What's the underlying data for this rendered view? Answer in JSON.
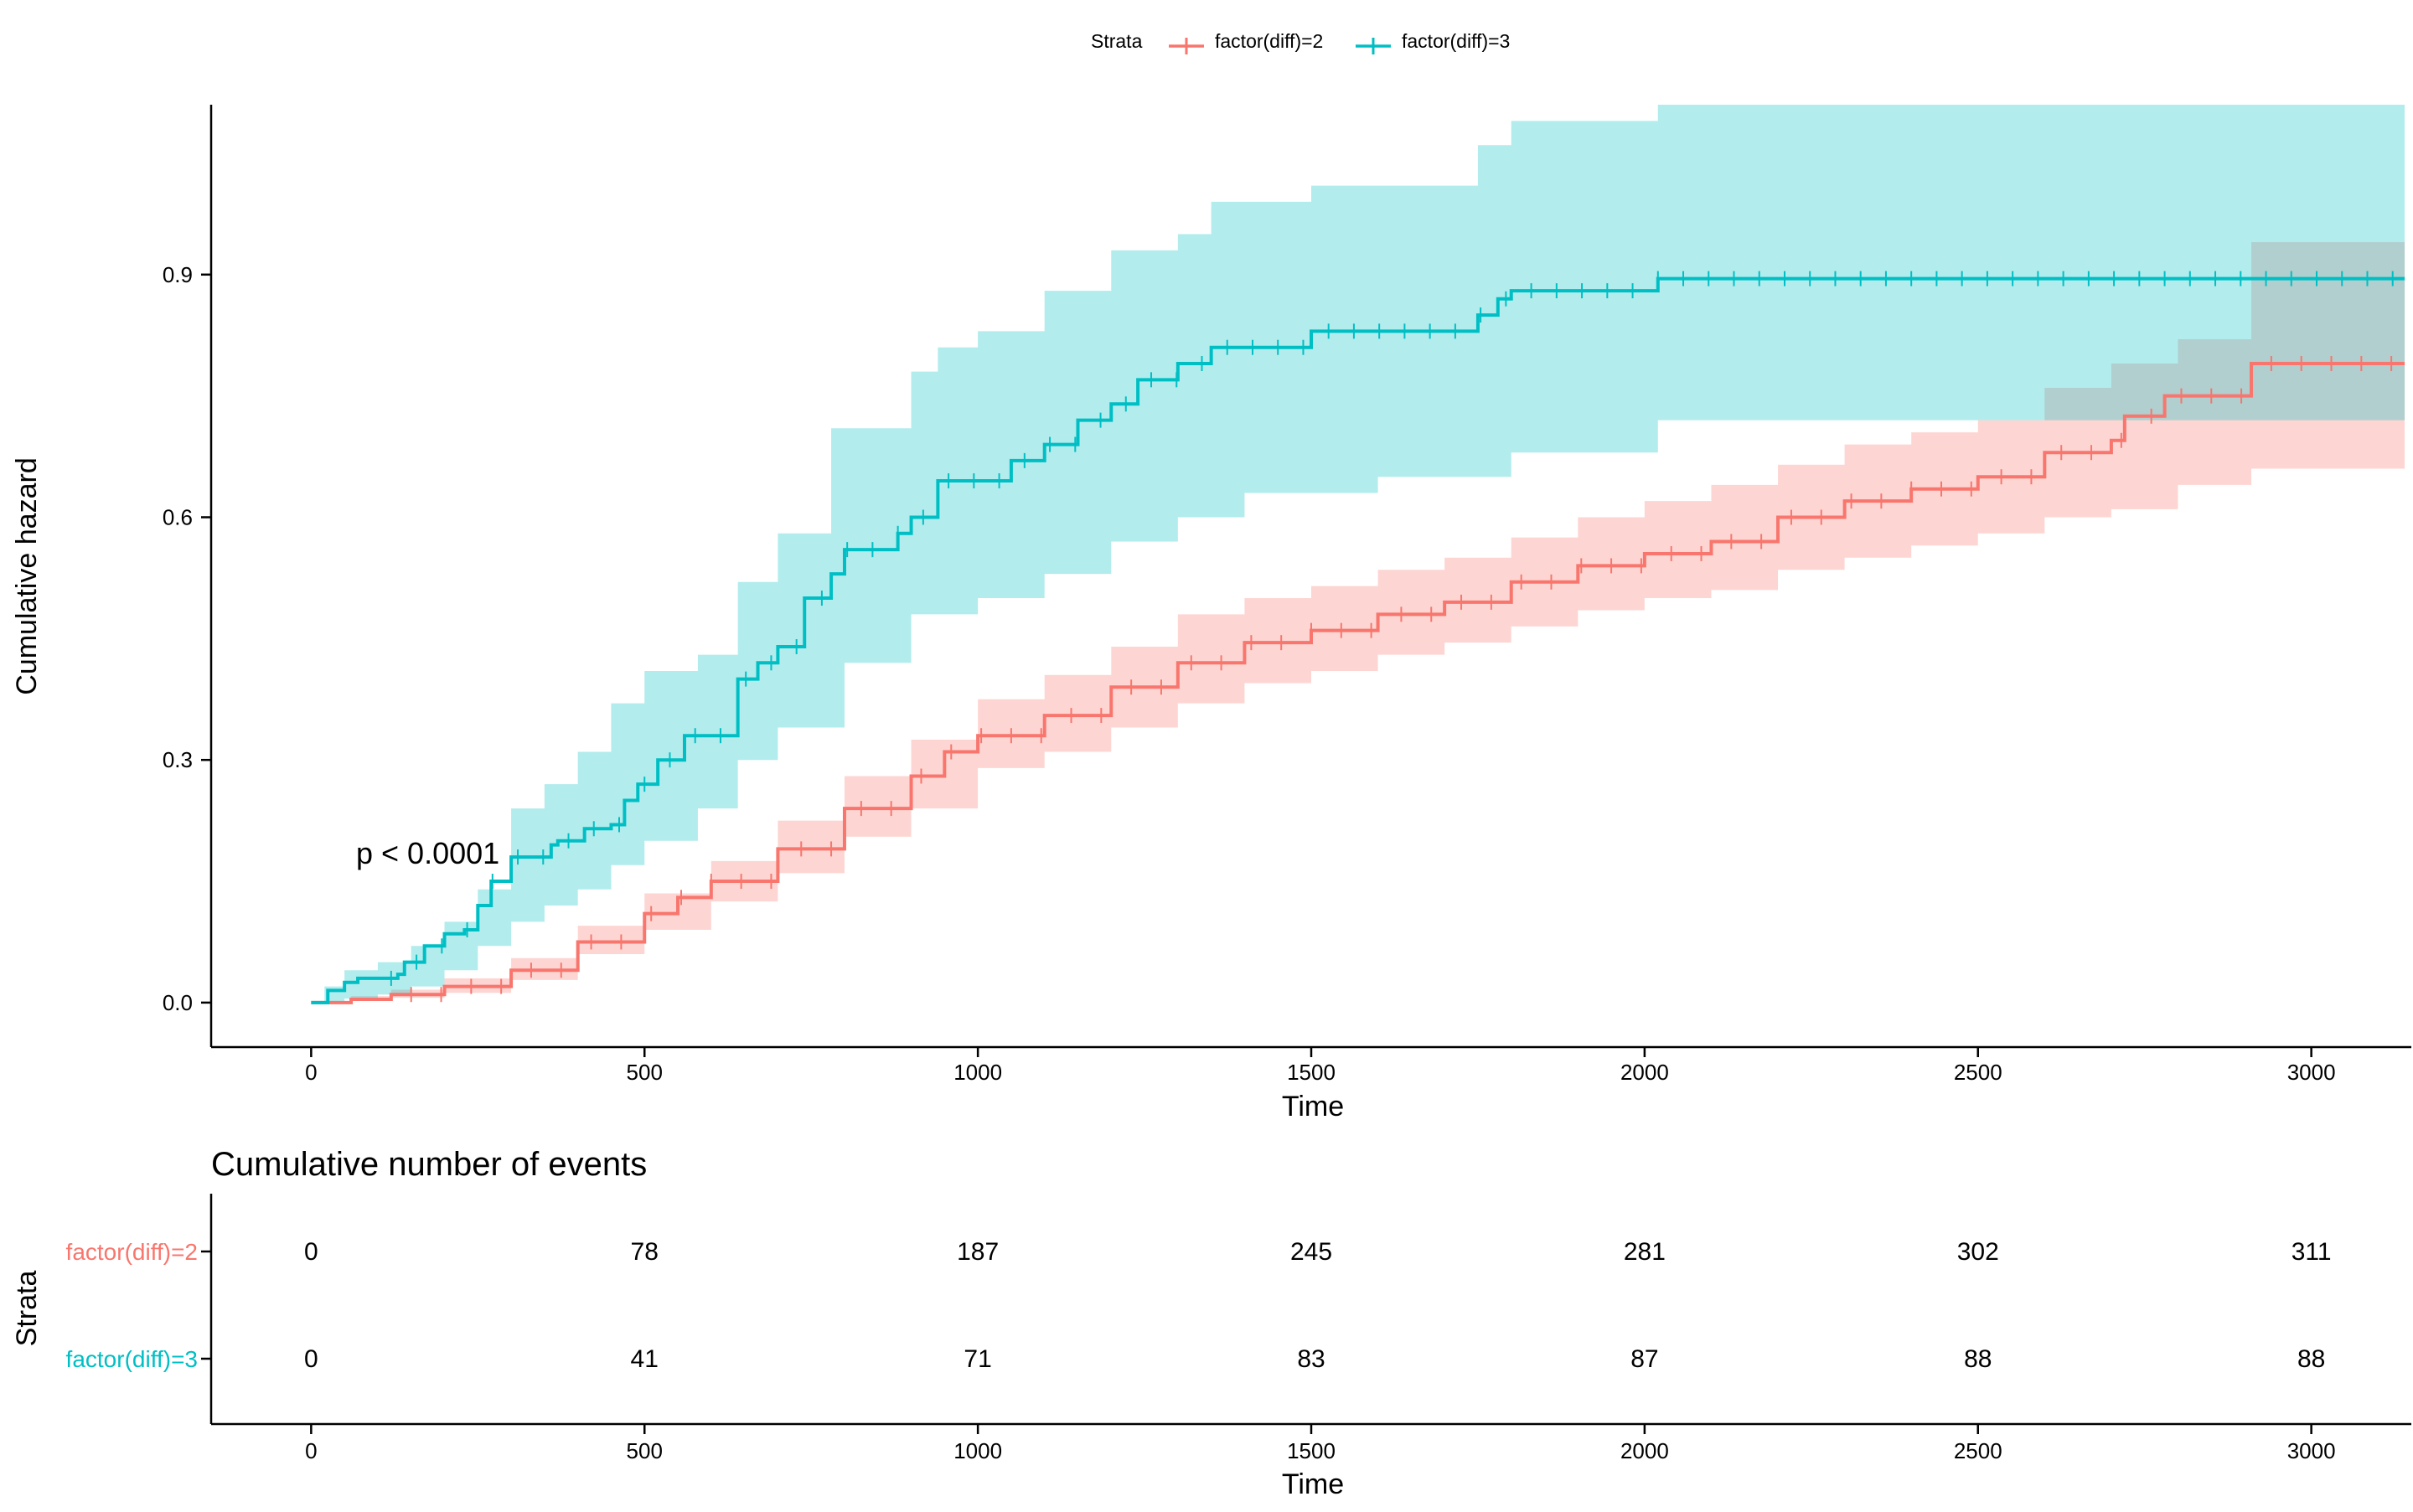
{
  "legend": {
    "title": "Strata",
    "items": [
      {
        "label": "factor(diff)=2",
        "color": "#F8766D"
      },
      {
        "label": "factor(diff)=3",
        "color": "#00BFC4"
      }
    ]
  },
  "chart_data": [
    {
      "type": "line",
      "title": "",
      "xlabel": "Time",
      "ylabel": "Cumulative hazard",
      "xlim": [
        -150,
        3150
      ],
      "ylim": [
        -0.055,
        1.11
      ],
      "xticks": [
        0,
        500,
        1000,
        1500,
        2000,
        2500,
        3000
      ],
      "yticks": [
        0.0,
        0.3,
        0.6,
        0.9
      ],
      "ytick_labels": [
        "0.0",
        "0.3",
        "0.6",
        "0.9"
      ],
      "grid": false,
      "legend_position": "top",
      "annotation": "p < 0.0001",
      "series": [
        {
          "name": "factor(diff)=2",
          "color": "#F8766D",
          "points": [
            [
              0,
              0
            ],
            [
              60,
              0.004
            ],
            [
              120,
              0.01
            ],
            [
              200,
              0.02
            ],
            [
              300,
              0.04
            ],
            [
              400,
              0.075
            ],
            [
              500,
              0.11
            ],
            [
              550,
              0.13
            ],
            [
              600,
              0.15
            ],
            [
              700,
              0.19
            ],
            [
              800,
              0.24
            ],
            [
              900,
              0.28
            ],
            [
              950,
              0.31
            ],
            [
              1000,
              0.33
            ],
            [
              1100,
              0.355
            ],
            [
              1200,
              0.39
            ],
            [
              1300,
              0.42
            ],
            [
              1400,
              0.445
            ],
            [
              1500,
              0.46
            ],
            [
              1600,
              0.48
            ],
            [
              1700,
              0.495
            ],
            [
              1800,
              0.52
            ],
            [
              1900,
              0.54
            ],
            [
              2000,
              0.555
            ],
            [
              2100,
              0.57
            ],
            [
              2200,
              0.6
            ],
            [
              2300,
              0.62
            ],
            [
              2400,
              0.635
            ],
            [
              2500,
              0.65
            ],
            [
              2600,
              0.68
            ],
            [
              2700,
              0.695
            ],
            [
              2720,
              0.725
            ],
            [
              2780,
              0.75
            ],
            [
              2910,
              0.79
            ],
            [
              3140,
              0.79
            ]
          ],
          "ci_lower": [
            [
              0,
              0
            ],
            [
              60,
              0.002
            ],
            [
              120,
              0.006
            ],
            [
              200,
              0.012
            ],
            [
              300,
              0.028
            ],
            [
              400,
              0.06
            ],
            [
              500,
              0.09
            ],
            [
              600,
              0.125
            ],
            [
              700,
              0.16
            ],
            [
              800,
              0.205
            ],
            [
              900,
              0.24
            ],
            [
              1000,
              0.29
            ],
            [
              1100,
              0.31
            ],
            [
              1200,
              0.34
            ],
            [
              1300,
              0.37
            ],
            [
              1400,
              0.395
            ],
            [
              1500,
              0.41
            ],
            [
              1600,
              0.43
            ],
            [
              1700,
              0.445
            ],
            [
              1800,
              0.465
            ],
            [
              1900,
              0.485
            ],
            [
              2000,
              0.5
            ],
            [
              2100,
              0.51
            ],
            [
              2200,
              0.535
            ],
            [
              2300,
              0.55
            ],
            [
              2400,
              0.565
            ],
            [
              2500,
              0.58
            ],
            [
              2600,
              0.6
            ],
            [
              2700,
              0.61
            ],
            [
              2800,
              0.64
            ],
            [
              2910,
              0.66
            ],
            [
              3140,
              0.66
            ]
          ],
          "ci_upper": [
            [
              0,
              0
            ],
            [
              60,
              0.008
            ],
            [
              120,
              0.016
            ],
            [
              200,
              0.03
            ],
            [
              300,
              0.055
            ],
            [
              400,
              0.095
            ],
            [
              500,
              0.135
            ],
            [
              600,
              0.175
            ],
            [
              700,
              0.225
            ],
            [
              800,
              0.28
            ],
            [
              900,
              0.325
            ],
            [
              1000,
              0.375
            ],
            [
              1100,
              0.405
            ],
            [
              1200,
              0.44
            ],
            [
              1300,
              0.48
            ],
            [
              1400,
              0.5
            ],
            [
              1500,
              0.515
            ],
            [
              1600,
              0.535
            ],
            [
              1700,
              0.55
            ],
            [
              1800,
              0.575
            ],
            [
              1900,
              0.6
            ],
            [
              2000,
              0.62
            ],
            [
              2100,
              0.64
            ],
            [
              2200,
              0.665
            ],
            [
              2300,
              0.69
            ],
            [
              2400,
              0.705
            ],
            [
              2500,
              0.72
            ],
            [
              2600,
              0.76
            ],
            [
              2700,
              0.79
            ],
            [
              2800,
              0.82
            ],
            [
              2910,
              0.94
            ],
            [
              3140,
              0.94
            ]
          ]
        },
        {
          "name": "factor(diff)=3",
          "color": "#00BFC4",
          "points": [
            [
              0,
              0
            ],
            [
              20,
              0
            ],
            [
              25,
              0.015
            ],
            [
              50,
              0.025
            ],
            [
              70,
              0.03
            ],
            [
              130,
              0.035
            ],
            [
              140,
              0.05
            ],
            [
              170,
              0.07
            ],
            [
              200,
              0.085
            ],
            [
              230,
              0.09
            ],
            [
              250,
              0.12
            ],
            [
              270,
              0.15
            ],
            [
              300,
              0.18
            ],
            [
              360,
              0.195
            ],
            [
              370,
              0.2
            ],
            [
              410,
              0.215
            ],
            [
              450,
              0.22
            ],
            [
              470,
              0.25
            ],
            [
              490,
              0.27
            ],
            [
              520,
              0.3
            ],
            [
              560,
              0.33
            ],
            [
              580,
              0.33
            ],
            [
              640,
              0.4
            ],
            [
              670,
              0.42
            ],
            [
              700,
              0.44
            ],
            [
              740,
              0.5
            ],
            [
              780,
              0.53
            ],
            [
              800,
              0.56
            ],
            [
              880,
              0.58
            ],
            [
              900,
              0.6
            ],
            [
              940,
              0.645
            ],
            [
              1000,
              0.645
            ],
            [
              1050,
              0.67
            ],
            [
              1100,
              0.69
            ],
            [
              1150,
              0.72
            ],
            [
              1200,
              0.74
            ],
            [
              1240,
              0.77
            ],
            [
              1300,
              0.79
            ],
            [
              1350,
              0.81
            ],
            [
              1500,
              0.83
            ],
            [
              1750,
              0.85
            ],
            [
              1780,
              0.87
            ],
            [
              1800,
              0.88
            ],
            [
              1900,
              0.88
            ],
            [
              2020,
              0.895
            ],
            [
              3140,
              0.895
            ]
          ],
          "ci_lower": [
            [
              0,
              0
            ],
            [
              20,
              0
            ],
            [
              50,
              0.005
            ],
            [
              100,
              0.01
            ],
            [
              150,
              0.02
            ],
            [
              200,
              0.04
            ],
            [
              250,
              0.07
            ],
            [
              300,
              0.1
            ],
            [
              350,
              0.12
            ],
            [
              400,
              0.14
            ],
            [
              450,
              0.17
            ],
            [
              500,
              0.2
            ],
            [
              580,
              0.24
            ],
            [
              640,
              0.3
            ],
            [
              700,
              0.34
            ],
            [
              800,
              0.42
            ],
            [
              900,
              0.48
            ],
            [
              1000,
              0.5
            ],
            [
              1100,
              0.53
            ],
            [
              1200,
              0.57
            ],
            [
              1300,
              0.6
            ],
            [
              1400,
              0.63
            ],
            [
              1600,
              0.65
            ],
            [
              1800,
              0.68
            ],
            [
              2020,
              0.72
            ],
            [
              3140,
              0.72
            ]
          ],
          "ci_upper": [
            [
              0,
              0
            ],
            [
              20,
              0.02
            ],
            [
              50,
              0.04
            ],
            [
              100,
              0.05
            ],
            [
              150,
              0.07
            ],
            [
              200,
              0.1
            ],
            [
              250,
              0.14
            ],
            [
              300,
              0.24
            ],
            [
              350,
              0.27
            ],
            [
              400,
              0.31
            ],
            [
              450,
              0.37
            ],
            [
              500,
              0.41
            ],
            [
              580,
              0.43
            ],
            [
              640,
              0.52
            ],
            [
              700,
              0.58
            ],
            [
              780,
              0.71
            ],
            [
              900,
              0.78
            ],
            [
              940,
              0.81
            ],
            [
              1000,
              0.83
            ],
            [
              1100,
              0.88
            ],
            [
              1200,
              0.93
            ],
            [
              1300,
              0.95
            ],
            [
              1350,
              0.99
            ],
            [
              1500,
              1.01
            ],
            [
              1750,
              1.06
            ],
            [
              1800,
              1.09
            ],
            [
              2020,
              1.11
            ],
            [
              3140,
              1.11
            ]
          ]
        }
      ]
    },
    {
      "type": "table",
      "title": "Cumulative number of events",
      "xlabel": "Time",
      "ylabel": "Strata",
      "xlim": [
        -150,
        3150
      ],
      "x": [
        0,
        500,
        1000,
        1500,
        2000,
        2500,
        3000
      ],
      "rows": [
        {
          "name": "factor(diff)=2",
          "color": "#F8766D",
          "values": [
            0,
            78,
            187,
            245,
            281,
            302,
            311
          ]
        },
        {
          "name": "factor(diff)=3",
          "color": "#00BFC4",
          "values": [
            0,
            41,
            71,
            83,
            87,
            88,
            88
          ]
        }
      ]
    }
  ]
}
